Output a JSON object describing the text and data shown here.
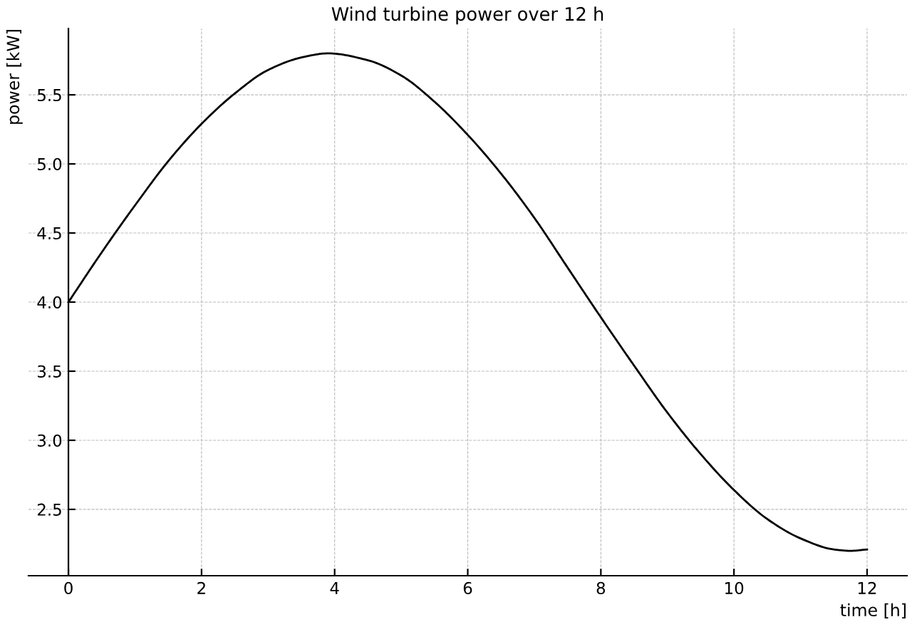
{
  "chart_data": {
    "type": "line",
    "title": "Wind turbine power over 12 h",
    "xlabel": "time [h]",
    "ylabel": "power [kW]",
    "x": [
      0,
      0.5,
      1.0,
      1.5,
      2.0,
      2.5,
      3.0,
      3.5,
      3.9,
      4.5,
      5.0,
      5.5,
      6.0,
      6.5,
      7.0,
      7.5,
      8.0,
      8.5,
      9.0,
      9.5,
      10.0,
      10.5,
      11.0,
      11.5,
      11.75,
      12.0
    ],
    "series": [
      {
        "color": "#000000",
        "values": [
          4.0,
          4.36,
          4.7,
          5.02,
          5.29,
          5.51,
          5.68,
          5.77,
          5.8,
          5.75,
          5.64,
          5.45,
          5.21,
          4.93,
          4.61,
          4.25,
          3.89,
          3.54,
          3.2,
          2.9,
          2.64,
          2.43,
          2.29,
          2.21,
          2.2,
          2.21
        ]
      }
    ],
    "xlim": [
      -0.6,
      12.6
    ],
    "ylim": [
      2.02,
      5.98
    ],
    "xticks": [
      0,
      2,
      4,
      6,
      8,
      10,
      12
    ],
    "yticks": [
      2.5,
      {
        "value": 3,
        "label": "3.0"
      },
      3.5,
      {
        "value": 4,
        "label": "4.0"
      },
      4.5,
      {
        "value": 5,
        "label": "5.0"
      },
      5.5
    ],
    "grid": true,
    "line_style": "solid",
    "marker": "none"
  }
}
